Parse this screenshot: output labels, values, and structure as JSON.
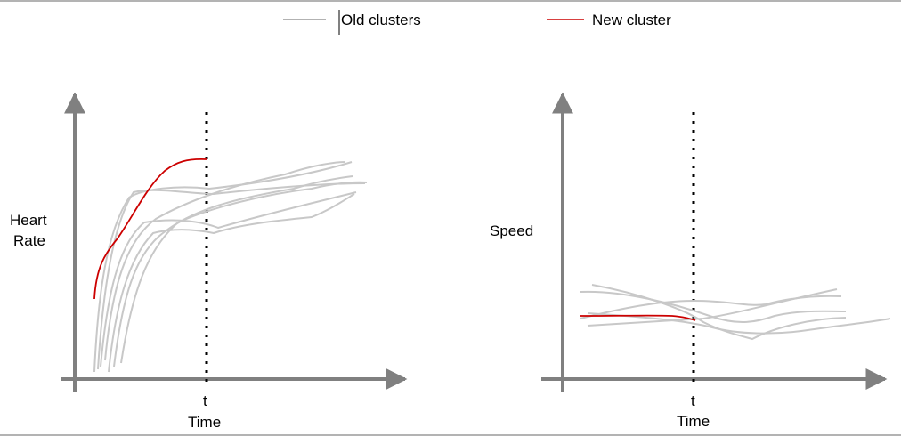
{
  "legend": {
    "old_label": "Old clusters",
    "new_label": "New cluster"
  },
  "left_panel": {
    "y_label_line1": "Heart",
    "y_label_line2": "Rate",
    "x_label": "Time",
    "marker_label": "t"
  },
  "right_panel": {
    "y_label": "Speed",
    "x_label": "Time",
    "marker_label": "t"
  },
  "colors": {
    "axis": "#808080",
    "old_series": "#c8c8c8",
    "new_series": "#cc0000",
    "legend_old": "#999999",
    "frame": "#b3b3b3"
  }
}
